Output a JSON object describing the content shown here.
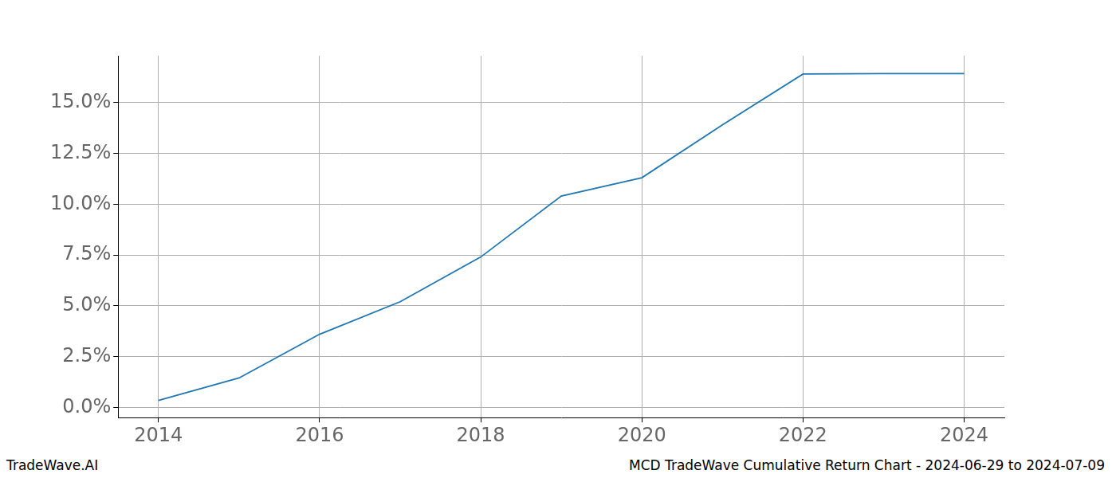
{
  "chart_data": {
    "type": "line",
    "watermark": "TradeWave.AI",
    "title": "MCD TradeWave Cumulative Return Chart - 2024-06-29 to 2024-07-09",
    "x": [
      2014,
      2015,
      2016,
      2017,
      2018,
      2019,
      2020,
      2021,
      2022,
      2023,
      2024
    ],
    "values": [
      0.35,
      1.45,
      3.6,
      5.2,
      7.4,
      10.4,
      11.3,
      13.9,
      16.4,
      16.42,
      16.42
    ],
    "color": "#1f77b4",
    "xlim": [
      2013.5,
      2024.5
    ],
    "xticks": [
      2014,
      2016,
      2018,
      2020,
      2022,
      2024
    ],
    "ylim": [
      -0.5,
      17.3
    ],
    "yticks": [
      {
        "value": 0,
        "label": "0.0%"
      },
      {
        "value": 2.5,
        "label": "2.5%"
      },
      {
        "value": 5,
        "label": "5.0%"
      },
      {
        "value": 7.5,
        "label": "7.5%"
      },
      {
        "value": 10,
        "label": "10.0%"
      },
      {
        "value": 12.5,
        "label": "12.5%"
      },
      {
        "value": 15,
        "label": "15.0%"
      }
    ],
    "grid": true
  }
}
